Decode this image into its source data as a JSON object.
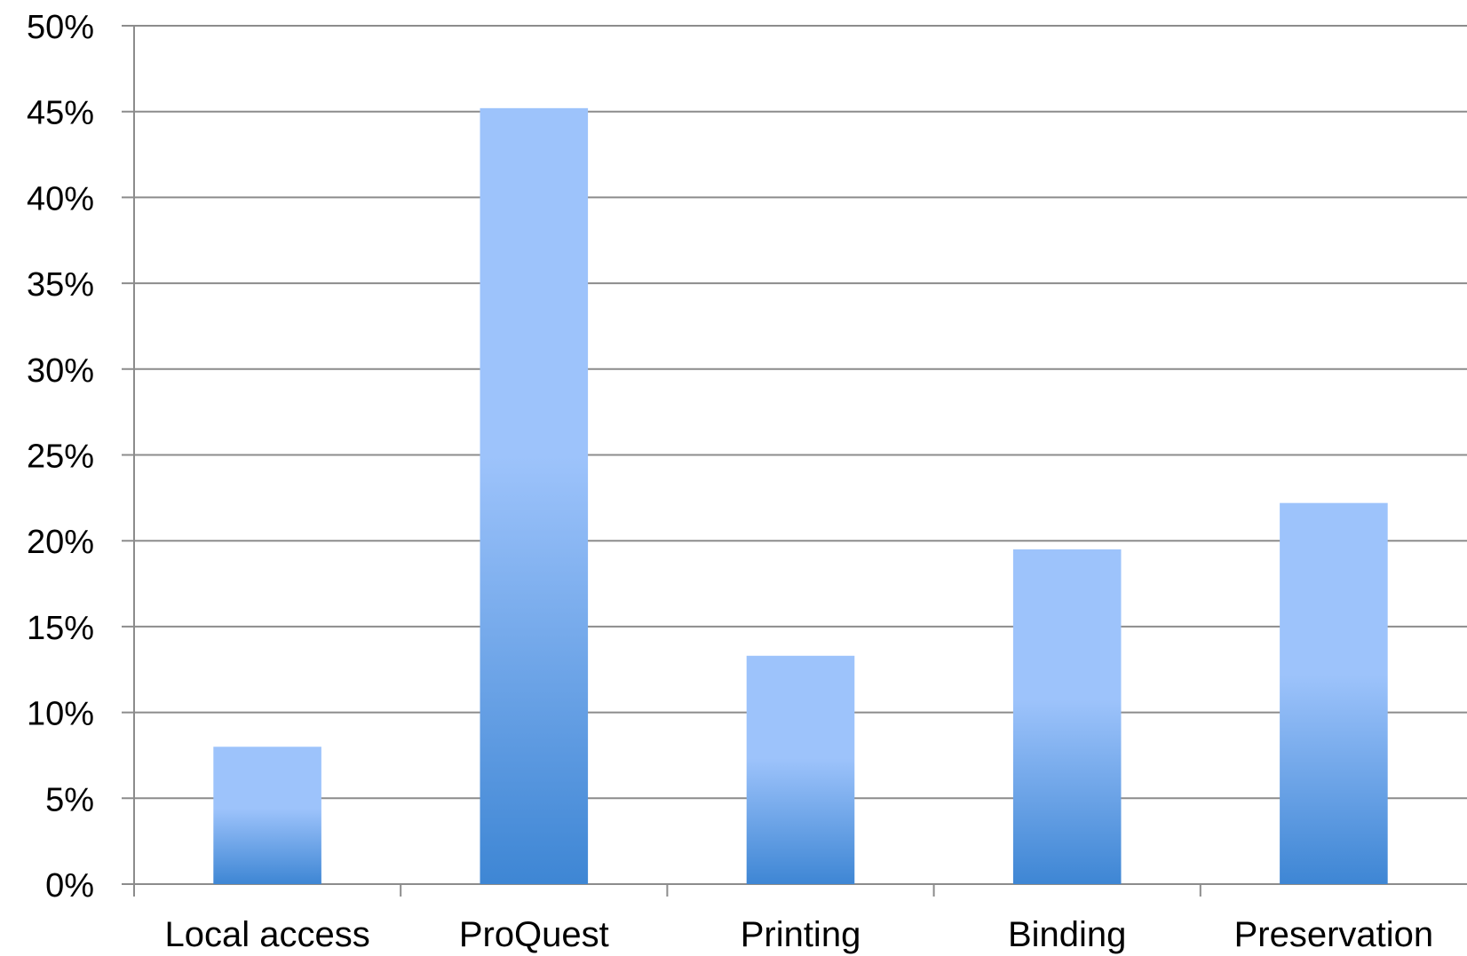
{
  "chart_data": {
    "type": "bar",
    "title": "",
    "xlabel": "",
    "ylabel": "",
    "categories": [
      "Local access",
      "ProQuest",
      "Printing",
      "Binding",
      "Preservation"
    ],
    "values": [
      8,
      45.2,
      13.3,
      19.5,
      22.2
    ],
    "ylim": [
      0,
      50
    ],
    "yticks": [
      0,
      5,
      10,
      15,
      20,
      25,
      30,
      35,
      40,
      45,
      50
    ],
    "ytick_labels": [
      "0%",
      "5%",
      "10%",
      "15%",
      "20%",
      "25%",
      "30%",
      "35%",
      "40%",
      "45%",
      "50%"
    ],
    "grid": true,
    "legend": "none",
    "colors": {
      "bar_top": "#9dc3fb",
      "bar_bottom": "#3e86d4",
      "grid": "#8c8c8c",
      "text": "#000000"
    }
  }
}
